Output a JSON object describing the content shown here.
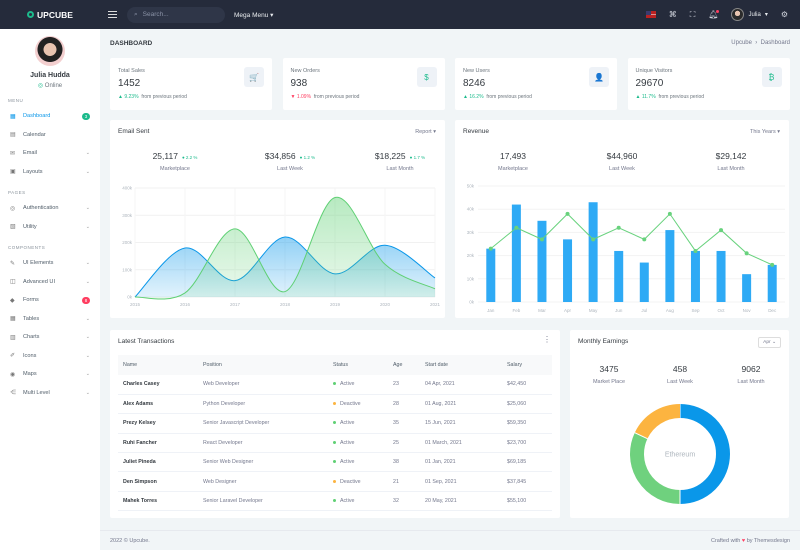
{
  "brand": "UPCUBE",
  "topbar": {
    "search_placeholder": "Search...",
    "mega_menu": "Mega Menu",
    "user_name": "Julia",
    "icons": [
      "flag-us-icon",
      "apps-grid-icon",
      "fullscreen-icon",
      "bell-icon",
      "gear-icon"
    ]
  },
  "profile": {
    "name": "Julia Hudda",
    "status": "Online"
  },
  "sidebar": {
    "sections": [
      {
        "title": "MENU",
        "items": [
          {
            "label": "Dashboard",
            "icon": "dashboard-icon",
            "badge": "3",
            "badge_color": "#1cbb8c",
            "active": true
          },
          {
            "label": "Calendar",
            "icon": "calendar-icon"
          },
          {
            "label": "Email",
            "icon": "mail-icon",
            "chevron": true
          },
          {
            "label": "Layouts",
            "icon": "layout-icon",
            "chevron": true
          }
        ]
      },
      {
        "title": "PAGES",
        "items": [
          {
            "label": "Authentication",
            "icon": "account-circle-icon",
            "chevron": true
          },
          {
            "label": "Utility",
            "icon": "profile-icon",
            "chevron": true
          }
        ]
      },
      {
        "title": "COMPONENTS",
        "items": [
          {
            "label": "UI Elements",
            "icon": "pencil-ruler-icon",
            "chevron": true
          },
          {
            "label": "Advanced UI",
            "icon": "briefcase-icon",
            "chevron": true
          },
          {
            "label": "Forms",
            "icon": "eraser-icon",
            "badge": "8",
            "badge_color": "#ff3d60"
          },
          {
            "label": "Tables",
            "icon": "table-icon",
            "chevron": true
          },
          {
            "label": "Charts",
            "icon": "bar-chart-icon",
            "chevron": true
          },
          {
            "label": "Icons",
            "icon": "brush-icon",
            "chevron": true
          },
          {
            "label": "Maps",
            "icon": "map-pin-icon",
            "chevron": true
          },
          {
            "label": "Multi Level",
            "icon": "share-icon",
            "chevron": true
          }
        ]
      }
    ]
  },
  "page": {
    "title": "DASHBOARD",
    "breadcrumb": [
      "Upcube",
      "Dashboard"
    ]
  },
  "stats": [
    {
      "label": "Total Sales",
      "value": "1452",
      "change": "9.23%",
      "dir": "up",
      "suffix": "from previous period",
      "icon": "cart-icon",
      "glyph": "🛒",
      "color": "#0a97e9"
    },
    {
      "label": "New Orders",
      "value": "938",
      "change": "1.09%",
      "dir": "down",
      "suffix": "from previous period",
      "icon": "dollar-icon",
      "glyph": "$",
      "color": "#1cbb8c"
    },
    {
      "label": "New Users",
      "value": "8246",
      "change": "16.2%",
      "dir": "up",
      "suffix": "from previous period",
      "icon": "user-icon",
      "glyph": "👤",
      "color": "#0a97e9"
    },
    {
      "label": "Unique Visitors",
      "value": "29670",
      "change": "11.7%",
      "dir": "up",
      "suffix": "from previous period",
      "icon": "bitcoin-icon",
      "glyph": "₿",
      "color": "#1cbb8c"
    }
  ],
  "email_sent": {
    "title": "Email Sent",
    "dropdown": "Report",
    "kpis": [
      {
        "value": "25,117",
        "change": "2.2 %",
        "label": "Marketplace"
      },
      {
        "value": "$34,856",
        "change": "1.2 %",
        "label": "Last Week"
      },
      {
        "value": "$18,225",
        "change": "1.7 %",
        "label": "Last Month"
      }
    ]
  },
  "revenue": {
    "title": "Revenue",
    "dropdown": "This Years",
    "kpis": [
      {
        "value": "17,493",
        "label": "Marketplace"
      },
      {
        "value": "$44,960",
        "label": "Last Week"
      },
      {
        "value": "$29,142",
        "label": "Last Month"
      }
    ]
  },
  "chart_data": [
    {
      "type": "area",
      "x": [
        "2015",
        "2016",
        "2017",
        "2018",
        "2019",
        "2020",
        "2021"
      ],
      "yticks": [
        "0k",
        "100k",
        "200k",
        "300k",
        "400k"
      ],
      "ylim": [
        0,
        400000
      ],
      "grid": true,
      "series": [
        {
          "color": "#0a97e9",
          "values": [
            0,
            180000,
            60000,
            220000,
            85000,
            190000,
            70000
          ]
        },
        {
          "color": "#5fd074",
          "values": [
            0,
            15000,
            250000,
            20000,
            365000,
            120000,
            30000
          ]
        }
      ]
    },
    {
      "type": "bar",
      "categories": [
        "Jan",
        "Feb",
        "Mar",
        "Apr",
        "May",
        "Jun",
        "Jul",
        "Aug",
        "Sep",
        "Oct",
        "Nov",
        "Dec"
      ],
      "yticks": [
        "0k",
        "10k",
        "20k",
        "30k",
        "40k",
        "50k"
      ],
      "ylim": [
        0,
        50000
      ],
      "grid": true,
      "series": [
        {
          "type": "bar",
          "color": "#2eaaf5",
          "values": [
            23000,
            42000,
            35000,
            27000,
            43000,
            22000,
            17000,
            31000,
            22000,
            22000,
            12000,
            16000
          ]
        },
        {
          "type": "line",
          "color": "#68d27d",
          "values": [
            23000,
            32000,
            27000,
            38000,
            27000,
            32000,
            27000,
            38000,
            22000,
            31000,
            21000,
            16000
          ]
        }
      ]
    },
    {
      "type": "pie",
      "center_label": "Ethereum",
      "values": [
        50,
        32,
        18
      ],
      "colors": [
        "#0a97e9",
        "#6fd17e",
        "#fcb440"
      ]
    }
  ],
  "transactions": {
    "title": "Latest Transactions",
    "columns": [
      "Name",
      "Position",
      "Status",
      "Age",
      "Start date",
      "Salary"
    ],
    "rows": [
      [
        "Charles Casey",
        "Web Developer",
        "Active",
        "23",
        "04 Apr, 2021",
        "$42,450"
      ],
      [
        "Alex Adams",
        "Python Developer",
        "Deactive",
        "28",
        "01 Aug, 2021",
        "$25,060"
      ],
      [
        "Prezy Kelsey",
        "Senior Javascript Developer",
        "Active",
        "35",
        "15 Jun, 2021",
        "$59,350"
      ],
      [
        "Ruhi Fancher",
        "React Developer",
        "Active",
        "25",
        "01 March, 2021",
        "$23,700"
      ],
      [
        "Juliet Pineda",
        "Senior Web Designer",
        "Active",
        "38",
        "01 Jan, 2021",
        "$69,185"
      ],
      [
        "Den Simpson",
        "Web Designer",
        "Deactive",
        "21",
        "01 Sep, 2021",
        "$37,845"
      ],
      [
        "Mahek Torres",
        "Senior Laravel Developer",
        "Active",
        "32",
        "20 May, 2021",
        "$55,100"
      ]
    ]
  },
  "earnings": {
    "title": "Monthly Earnings",
    "dropdown": "Apr",
    "kpis": [
      {
        "value": "3475",
        "label": "Market Place"
      },
      {
        "value": "458",
        "label": "Last Week"
      },
      {
        "value": "9062",
        "label": "Last Month"
      }
    ]
  },
  "footer": {
    "left": "2022 © Upcube.",
    "right_prefix": "Crafted with",
    "right_suffix": "by Themesdesign"
  }
}
